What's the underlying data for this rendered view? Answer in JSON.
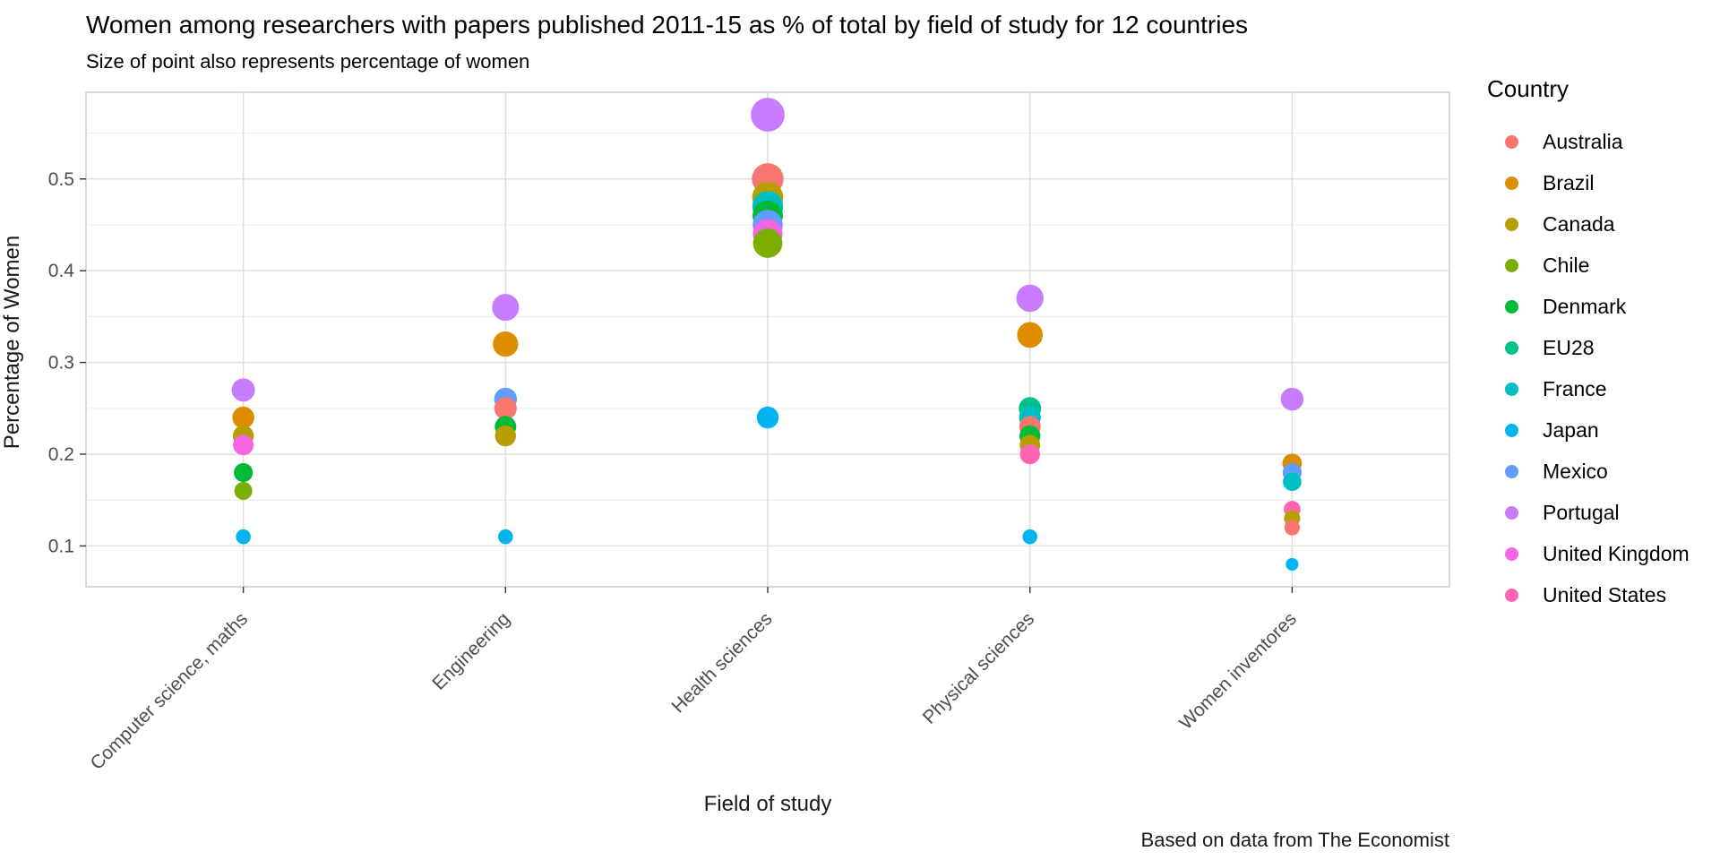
{
  "chart_data": {
    "type": "scatter",
    "title": "Women among researchers with papers published 2011-15 as % of total by field of study for 12 countries",
    "subtitle": "Size of point also represents percentage of women",
    "xlabel": "Field of study",
    "ylabel": "Percentage of Women",
    "caption": "Based on data from The Economist",
    "legend_title": "Country",
    "legend_position": "right",
    "grid": "on",
    "categories": [
      "Computer science, maths",
      "Engineering",
      "Health sciences",
      "Physical sciences",
      "Women inventores"
    ],
    "y_ticks": [
      "0.1",
      "0.2",
      "0.3",
      "0.4",
      "0.5"
    ],
    "y_minor_gridlines": [
      0.15,
      0.25,
      0.35,
      0.45,
      0.55
    ],
    "ylim": [
      0.0555,
      0.5945
    ],
    "size_encoding": "point radius proportional to sqrt(value)",
    "series": [
      {
        "name": "Australia",
        "color": "#F8766D",
        "values": [
          null,
          0.25,
          0.5,
          0.23,
          0.12
        ]
      },
      {
        "name": "Brazil",
        "color": "#DE8C00",
        "values": [
          0.24,
          0.32,
          null,
          0.33,
          0.19
        ]
      },
      {
        "name": "Canada",
        "color": "#B79F00",
        "values": [
          0.22,
          0.22,
          0.48,
          0.21,
          0.13
        ]
      },
      {
        "name": "Chile",
        "color": "#7CAE00",
        "values": [
          0.16,
          null,
          0.43,
          null,
          null
        ]
      },
      {
        "name": "Denmark",
        "color": "#00BA38",
        "values": [
          0.18,
          0.23,
          0.46,
          0.22,
          null
        ]
      },
      {
        "name": "EU28",
        "color": "#00C08B",
        "values": [
          null,
          null,
          0.47,
          0.25,
          null
        ]
      },
      {
        "name": "France",
        "color": "#00BFC4",
        "values": [
          null,
          null,
          0.47,
          0.24,
          0.17
        ]
      },
      {
        "name": "Japan",
        "color": "#00B4F0",
        "values": [
          0.11,
          0.11,
          0.24,
          0.11,
          0.08
        ]
      },
      {
        "name": "Mexico",
        "color": "#619CFF",
        "values": [
          null,
          0.26,
          0.45,
          null,
          0.18
        ]
      },
      {
        "name": "Portugal",
        "color": "#C77CFF",
        "values": [
          0.27,
          0.36,
          0.57,
          0.37,
          0.26
        ]
      },
      {
        "name": "United Kingdom",
        "color": "#F564E3",
        "values": [
          0.21,
          null,
          0.44,
          null,
          null
        ]
      },
      {
        "name": "United States",
        "color": "#FF64B0",
        "values": [
          null,
          null,
          null,
          0.2,
          0.14
        ]
      }
    ]
  }
}
